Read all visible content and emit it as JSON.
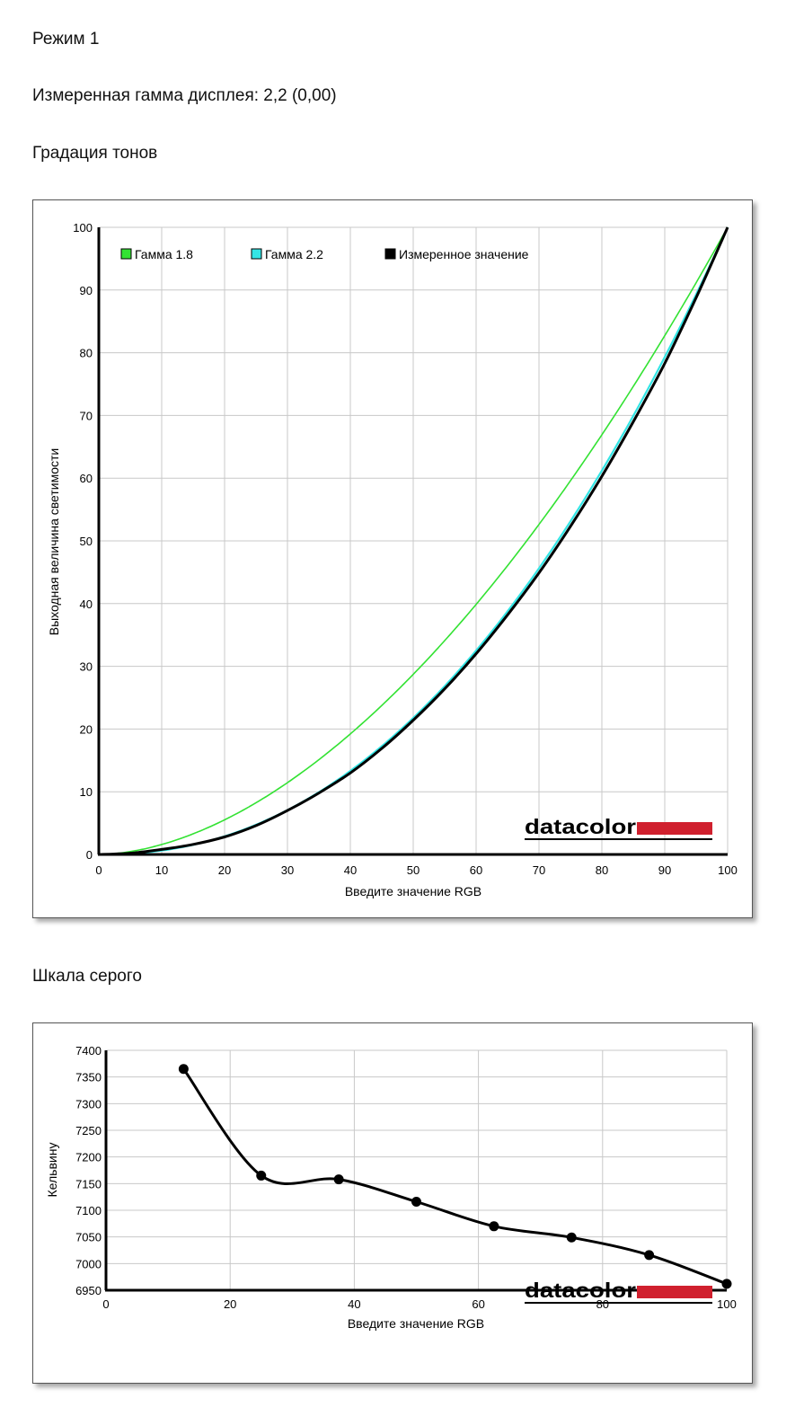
{
  "page": {
    "mode": "Режим 1",
    "measured_gamma": "Измеренная гамма дисплея: 2,2 (0,00)",
    "tone_heading": "Градация тонов",
    "gray_heading": "Шкала серого"
  },
  "brand": {
    "logo_text": "datacolor",
    "accent_color": "#d0202e"
  },
  "colors": {
    "gamma18": "#33e233",
    "gamma22": "#33e5e5",
    "measured": "#000000",
    "grid": "#c8c8c8"
  },
  "chart_data": [
    {
      "type": "line",
      "title": "",
      "xlabel": "Введите значение RGB",
      "ylabel": "Выходная величина светимости",
      "xlim": [
        0,
        100
      ],
      "ylim": [
        0,
        100
      ],
      "xticks": [
        "0",
        "10",
        "20",
        "30",
        "40",
        "50",
        "60",
        "70",
        "80",
        "90",
        "100"
      ],
      "yticks": [
        "0",
        "10",
        "20",
        "30",
        "40",
        "50",
        "60",
        "70",
        "80",
        "90",
        "100"
      ],
      "grid": true,
      "legend_position": "top-left",
      "legend": [
        {
          "label": "Гамма 1.8",
          "color": "#33e233"
        },
        {
          "label": "Гамма 2.2",
          "color": "#33e5e5"
        },
        {
          "label": "Измеренное значение",
          "color": "#000000"
        }
      ],
      "series": [
        {
          "name": "Гамма 1.8",
          "gamma": 1.8,
          "x": [
            0,
            5,
            10,
            15,
            20,
            25,
            30,
            35,
            40,
            45,
            50,
            55,
            60,
            65,
            70,
            75,
            80,
            85,
            90,
            95,
            100
          ],
          "values": [
            0,
            0.5,
            1.6,
            3.3,
            5.5,
            8.2,
            11.5,
            15.1,
            19.2,
            23.8,
            28.7,
            34.1,
            39.9,
            46.1,
            52.6,
            59.6,
            66.9,
            74.6,
            82.7,
            91.2,
            100
          ]
        },
        {
          "name": "Гамма 2.2",
          "gamma": 2.2,
          "x": [
            0,
            5,
            10,
            15,
            20,
            25,
            30,
            35,
            40,
            45,
            50,
            55,
            60,
            65,
            70,
            75,
            80,
            85,
            90,
            95,
            100
          ],
          "values": [
            0,
            0.1,
            0.6,
            1.5,
            2.9,
            4.7,
            7.1,
            9.9,
            13.3,
            17.3,
            21.8,
            26.8,
            32.5,
            38.7,
            45.6,
            53.1,
            61.2,
            69.9,
            79.3,
            89.3,
            100
          ]
        },
        {
          "name": "Измеренное значение",
          "x": [
            0,
            5,
            10,
            15,
            20,
            25,
            30,
            35,
            40,
            45,
            50,
            55,
            60,
            65,
            70,
            75,
            80,
            85,
            90,
            95,
            100
          ],
          "values": [
            0,
            0.2,
            0.8,
            1.6,
            2.8,
            4.6,
            7.0,
            9.8,
            13.0,
            16.9,
            21.4,
            26.4,
            32.0,
            38.2,
            44.9,
            52.3,
            60.3,
            69.0,
            78.3,
            88.8,
            100
          ]
        }
      ]
    },
    {
      "type": "line",
      "title": "",
      "xlabel": "Введите значение RGB",
      "ylabel": "Кельвину",
      "xlim": [
        0,
        100
      ],
      "ylim": [
        6950,
        7400
      ],
      "xticks": [
        "0",
        "20",
        "40",
        "60",
        "80",
        "100"
      ],
      "yticks": [
        "6950",
        "7000",
        "7050",
        "7100",
        "7150",
        "7200",
        "7250",
        "7300",
        "7350",
        "7400"
      ],
      "grid": true,
      "series": [
        {
          "name": "",
          "x": [
            12.5,
            25,
            37.5,
            50,
            62.5,
            75,
            87.5,
            100
          ],
          "values": [
            7365,
            7165,
            7158,
            7116,
            7070,
            7049,
            7016,
            6962
          ]
        }
      ]
    }
  ]
}
